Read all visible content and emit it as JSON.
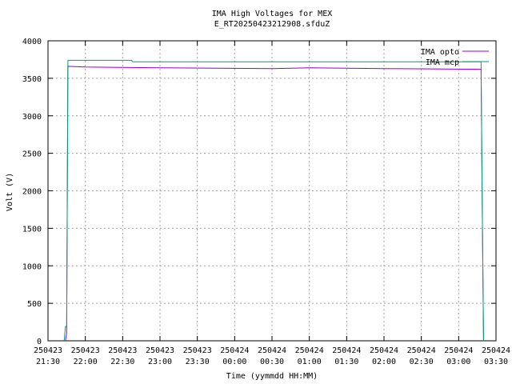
{
  "chart_data": {
    "type": "line",
    "title": "IMA High Voltages for MEX",
    "subtitle": "E_RT20250423212908.sfduZ",
    "x_label": "Time (yymmdd HH:MM)",
    "y_label": "Volt (V)",
    "xlim": [
      "2025-04-23T21:30",
      "2025-04-24T03:30"
    ],
    "xticks": [
      {
        "value": "2025-04-23T21:30",
        "label": "250423 21:30"
      },
      {
        "value": "2025-04-23T22:00",
        "label": "250423 22:00"
      },
      {
        "value": "2025-04-23T22:30",
        "label": "250423 22:30"
      },
      {
        "value": "2025-04-23T23:00",
        "label": "250423 23:00"
      },
      {
        "value": "2025-04-23T23:30",
        "label": "250423 23:30"
      },
      {
        "value": "2025-04-24T00:00",
        "label": "250424 00:00"
      },
      {
        "value": "2025-04-24T00:30",
        "label": "250424 00:30"
      },
      {
        "value": "2025-04-24T01:00",
        "label": "250424 01:00"
      },
      {
        "value": "2025-04-24T01:30",
        "label": "250424 01:30"
      },
      {
        "value": "2025-04-24T02:00",
        "label": "250424 02:00"
      },
      {
        "value": "2025-04-24T02:30",
        "label": "250424 02:30"
      },
      {
        "value": "2025-04-24T03:00",
        "label": "250424 03:00"
      },
      {
        "value": "2025-04-24T03:30",
        "label": "250424 03:30"
      }
    ],
    "ylim": [
      0,
      4000
    ],
    "yticks": [
      0,
      500,
      1000,
      1500,
      2000,
      2500,
      3000,
      3500,
      4000
    ],
    "grid": true,
    "legend": "top-right",
    "series": [
      {
        "name": "IMA opto",
        "color": "#9400d3",
        "x": [
          "2025-04-23T21:44",
          "2025-04-23T21:45",
          "2025-04-23T21:46",
          "2025-04-23T22:00",
          "2025-04-23T23:00",
          "2025-04-24T00:30",
          "2025-04-24T01:00",
          "2025-04-24T02:00",
          "2025-04-24T03:18",
          "2025-04-24T03:19",
          "2025-04-24T03:20"
        ],
        "values": [
          0,
          100,
          3660,
          3650,
          3640,
          3630,
          3640,
          3630,
          3620,
          1720,
          0
        ]
      },
      {
        "name": "IMA mcp",
        "color": "#009e73",
        "x": [
          "2025-04-23T21:43",
          "2025-04-23T21:44",
          "2025-04-23T21:45",
          "2025-04-23T21:46",
          "2025-04-23T22:37",
          "2025-04-23T22:38",
          "2025-04-24T03:18",
          "2025-04-24T03:19",
          "2025-04-24T03:20"
        ],
        "values": [
          0,
          190,
          190,
          3740,
          3740,
          3720,
          3720,
          1720,
          0
        ]
      }
    ]
  }
}
